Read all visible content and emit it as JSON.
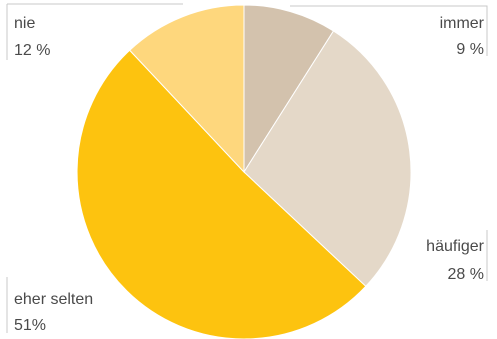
{
  "chart_data": {
    "type": "pie",
    "title": "",
    "unit": "%",
    "slices": [
      {
        "label": "immer",
        "value": 9,
        "value_text": "9 %",
        "color": "#d3c2ad"
      },
      {
        "label": "häufiger",
        "value": 28,
        "value_text": "28 %",
        "color": "#e4d8c8"
      },
      {
        "label": "eher selten",
        "value": 51,
        "value_text": "51%",
        "color": "#fdc30f"
      },
      {
        "label": "nie",
        "value": 12,
        "value_text": "12 %",
        "color": "#fed77d"
      }
    ],
    "start_angle_deg": 0,
    "direction": "clockwise",
    "legend": "none"
  }
}
